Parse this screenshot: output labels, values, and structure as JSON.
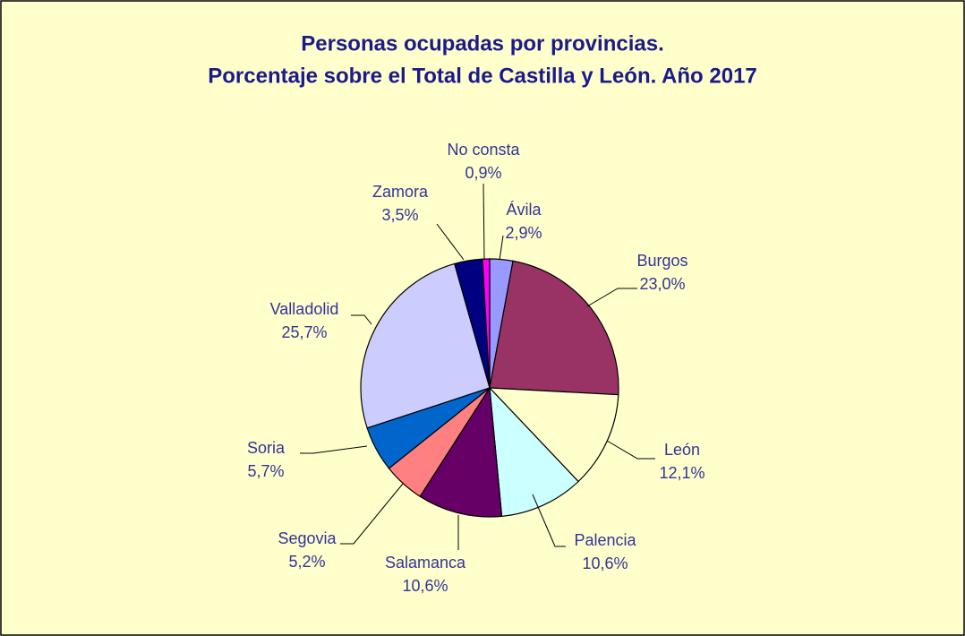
{
  "chart_data": {
    "type": "pie",
    "title": "Personas ocupadas por provincias.",
    "subtitle": "Porcentaje sobre el Total de Castilla y León. Año 2017",
    "categories": [
      "Ávila",
      "Burgos",
      "León",
      "Palencia",
      "Salamanca",
      "Segovia",
      "Soria",
      "Valladolid",
      "Zamora",
      "No consta"
    ],
    "values": [
      2.9,
      23.0,
      12.1,
      10.6,
      10.6,
      5.2,
      5.7,
      25.7,
      3.5,
      0.9
    ],
    "value_labels": [
      "2,9%",
      "23,0%",
      "12,1%",
      "10,6%",
      "10,6%",
      "5,2%",
      "5,7%",
      "25,7%",
      "3,5%",
      "0,9%"
    ],
    "colors": [
      "#9999FF",
      "#993366",
      "#FFFFCC",
      "#CCFFFF",
      "#660066",
      "#FF8080",
      "#0066CC",
      "#CCCCFF",
      "#000080",
      "#FF00FF"
    ]
  }
}
